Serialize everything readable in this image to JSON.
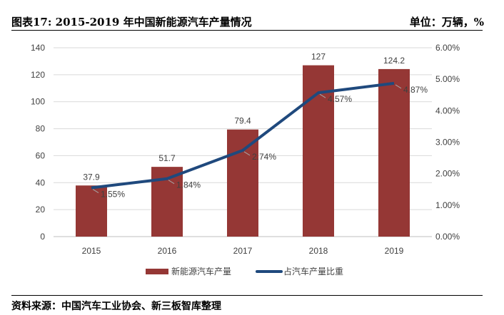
{
  "header": {
    "title": "图表17: 2015-2019 年中国新能源汽车产量情况",
    "unit": "单位：万辆，%"
  },
  "footer": {
    "source": "资料来源：中国汽车工业协会、新三板智库整理"
  },
  "chart_data": {
    "type": "bar+line",
    "categories": [
      "2015",
      "2016",
      "2017",
      "2018",
      "2019"
    ],
    "series": [
      {
        "name": "新能源汽车产量",
        "type": "bar",
        "axis": "left",
        "values": [
          37.9,
          51.7,
          79.4,
          127,
          124.2
        ],
        "labels": [
          "37.9",
          "51.7",
          "79.4",
          "127",
          "124.2"
        ],
        "color": "#953735"
      },
      {
        "name": "占汽车产量比重",
        "type": "line",
        "axis": "right",
        "values": [
          1.55,
          1.84,
          2.74,
          4.57,
          4.87
        ],
        "labels": [
          "1.55%",
          "1.84%",
          "2.74%",
          "4.57%",
          "4.87%"
        ],
        "color": "#1F497D"
      }
    ],
    "left_axis": {
      "range": [
        0,
        140
      ],
      "ticks": [
        "0",
        "20",
        "40",
        "60",
        "80",
        "100",
        "120",
        "140"
      ]
    },
    "right_axis": {
      "range": [
        0,
        6
      ],
      "ticks": [
        "0.00%",
        "1.00%",
        "2.00%",
        "3.00%",
        "4.00%",
        "5.00%",
        "6.00%"
      ]
    },
    "grid": true,
    "legend": "bottom"
  }
}
